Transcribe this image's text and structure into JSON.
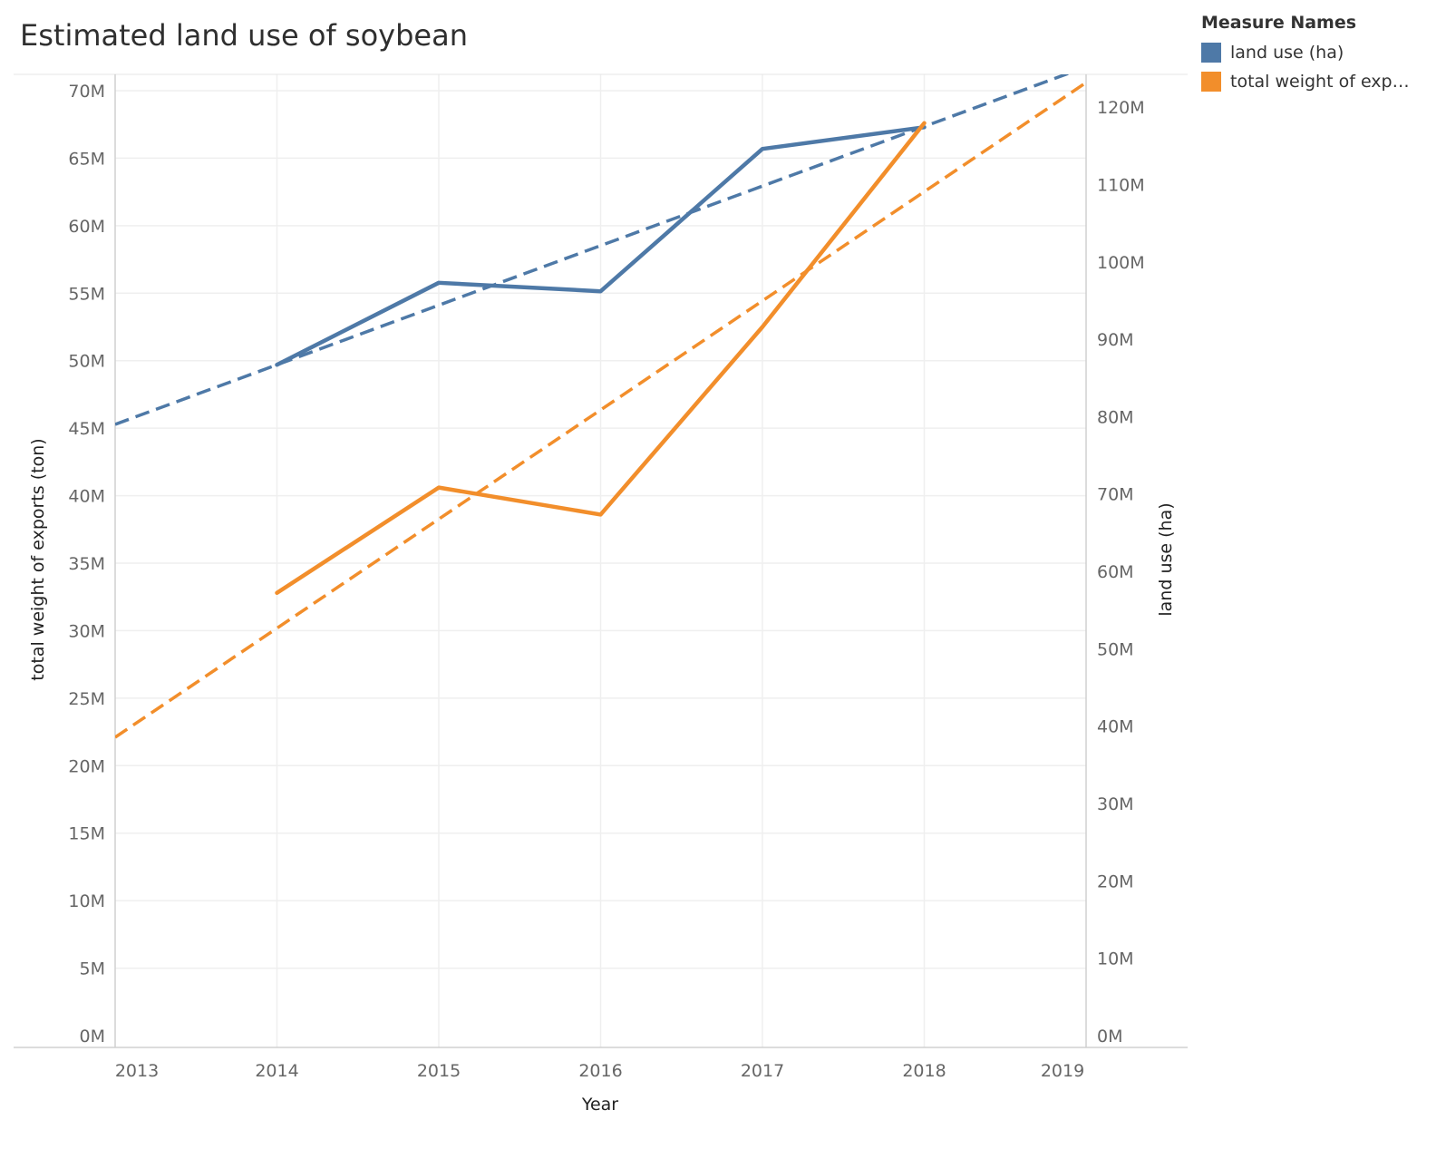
{
  "title": "Estimated land use of soybean",
  "legend": {
    "title": "Measure Names",
    "items": [
      {
        "label": "land use (ha)",
        "color": "#4e79a7"
      },
      {
        "label": "total weight of expor..",
        "color": "#f28e2b"
      }
    ]
  },
  "chart_data": {
    "type": "line",
    "title": "Estimated land use of soybean",
    "xlabel": "Year",
    "ylabel_left": "total weight of exports (ton)",
    "ylabel_right": "land use (ha)",
    "x_ticks": [
      "2013",
      "2014",
      "2015",
      "2016",
      "2017",
      "2018",
      "2019"
    ],
    "xlim": [
      2013,
      2019
    ],
    "y_left_lim": [
      0,
      70000000
    ],
    "y_right_lim": [
      0,
      124000000
    ],
    "y_left_ticks": [
      {
        "value": 0,
        "label": "0M"
      },
      {
        "value": 5000000,
        "label": "5M"
      },
      {
        "value": 10000000,
        "label": "10M"
      },
      {
        "value": 15000000,
        "label": "15M"
      },
      {
        "value": 20000000,
        "label": "20M"
      },
      {
        "value": 25000000,
        "label": "25M"
      },
      {
        "value": 30000000,
        "label": "30M"
      },
      {
        "value": 35000000,
        "label": "35M"
      },
      {
        "value": 40000000,
        "label": "40M"
      },
      {
        "value": 45000000,
        "label": "45M"
      },
      {
        "value": 50000000,
        "label": "50M"
      },
      {
        "value": 55000000,
        "label": "55M"
      },
      {
        "value": 60000000,
        "label": "60M"
      },
      {
        "value": 65000000,
        "label": "65M"
      },
      {
        "value": 70000000,
        "label": "70M"
      }
    ],
    "y_right_ticks": [
      {
        "value": 0,
        "label": "0M"
      },
      {
        "value": 10000000,
        "label": "10M"
      },
      {
        "value": 20000000,
        "label": "20M"
      },
      {
        "value": 30000000,
        "label": "30M"
      },
      {
        "value": 40000000,
        "label": "40M"
      },
      {
        "value": 50000000,
        "label": "50M"
      },
      {
        "value": 60000000,
        "label": "60M"
      },
      {
        "value": 70000000,
        "label": "70M"
      },
      {
        "value": 80000000,
        "label": "80M"
      },
      {
        "value": 90000000,
        "label": "90M"
      },
      {
        "value": 100000000,
        "label": "100M"
      },
      {
        "value": 110000000,
        "label": "110M"
      },
      {
        "value": 120000000,
        "label": "120M"
      }
    ],
    "grid": true,
    "legend_position": "top-right",
    "series": [
      {
        "name": "land use (ha)",
        "axis": "right",
        "color": "#4e79a7",
        "x": [
          2014,
          2015,
          2016,
          2017,
          2018
        ],
        "values": [
          86700000,
          97300000,
          96200000,
          114600000,
          117400000
        ],
        "trend": {
          "x": [
            2013,
            2019
          ],
          "values": [
            79000000,
            125200000
          ]
        }
      },
      {
        "name": "total weight of exports (ton)",
        "axis": "left",
        "color": "#f28e2b",
        "x": [
          2014,
          2015,
          2016,
          2017,
          2018
        ],
        "values": [
          32800000,
          40600000,
          38600000,
          52500000,
          67600000
        ],
        "trend": {
          "x": [
            2013,
            2019
          ],
          "values": [
            22100000,
            70600000
          ]
        }
      }
    ]
  }
}
